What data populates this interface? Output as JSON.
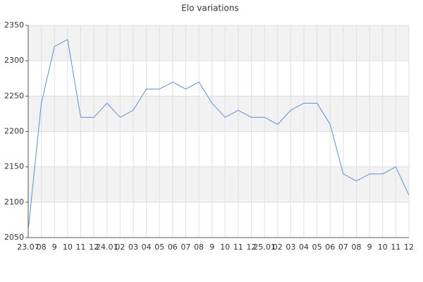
{
  "chart_data": {
    "type": "line",
    "title": "Elo variations",
    "categories": [
      "23.07",
      "08",
      "9",
      "10",
      "11",
      "12",
      "24.01",
      "02",
      "03",
      "04",
      "05",
      "06",
      "07",
      "08",
      "9",
      "10",
      "11",
      "12",
      "25.01",
      "02",
      "03",
      "04",
      "05",
      "06",
      "07",
      "08",
      "9",
      "10",
      "11",
      "12"
    ],
    "series": [
      {
        "name": "Elo",
        "color": "#5b8fe0",
        "values": [
          2060,
          2240,
          2320,
          2330,
          2220,
          2220,
          2240,
          2220,
          2230,
          2260,
          2260,
          2270,
          2260,
          2270,
          2240,
          2220,
          2230,
          2220,
          2220,
          2210,
          2230,
          2240,
          2240,
          2210,
          2140,
          2130,
          2140,
          2140,
          2150,
          2110
        ]
      }
    ],
    "ylim": [
      2050,
      2350
    ],
    "yticks": [
      2050,
      2100,
      2150,
      2200,
      2250,
      2300,
      2350
    ],
    "grid": true
  }
}
